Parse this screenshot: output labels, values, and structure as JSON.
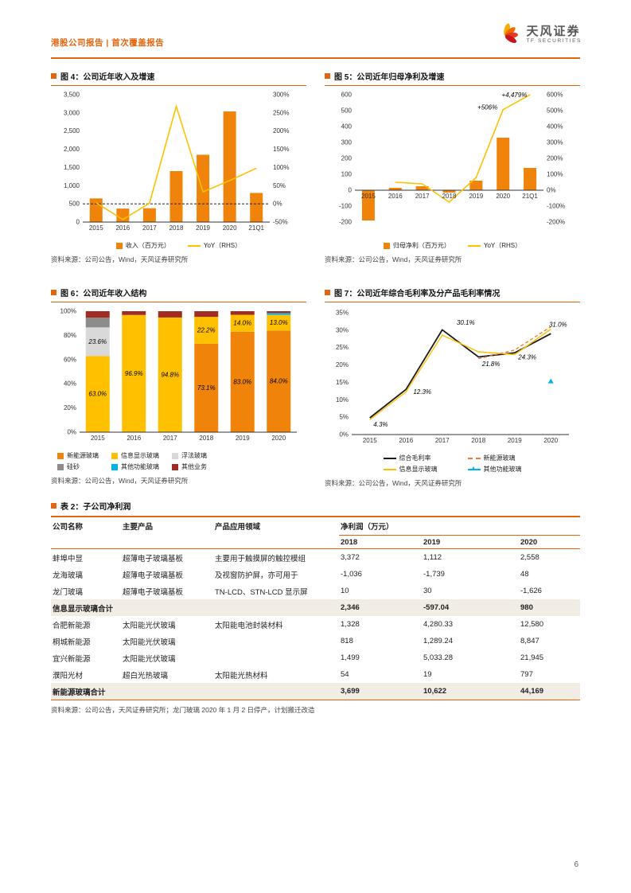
{
  "page": {
    "header_label": "港股公司报告 | 首次覆盖报告",
    "brand_cn": "天风证券",
    "brand_en": "TF SECURITIES",
    "page_number": "6",
    "accent_color": "#E4650F"
  },
  "figures": {
    "fig4": {
      "title": "图 4：公司近年收入及增速",
      "source": "资料来源：公司公告，Wind，天风证券研究所",
      "legend": [
        {
          "label": "收入（百万元）",
          "type": "rect",
          "color": "#F0830A"
        },
        {
          "label": "YoY（RHS）",
          "type": "line",
          "color": "#FFC000"
        }
      ]
    },
    "fig5": {
      "title": "图 5：公司近年归母净利及增速",
      "source": "资料来源：公司公告，Wind，天风证券研究所",
      "legend": [
        {
          "label": "归母净利（百万元）",
          "type": "rect",
          "color": "#F0830A"
        },
        {
          "label": "YoY（RHS）",
          "type": "line",
          "color": "#FFC000"
        }
      ]
    },
    "fig6": {
      "title": "图 6：公司近年收入结构",
      "source": "资料来源：公司公告，Wind，天风证券研究所",
      "legend": [
        {
          "label": "新能源玻璃",
          "type": "rect",
          "color": "#F0830A"
        },
        {
          "label": "信息显示玻璃",
          "type": "rect",
          "color": "#FFC000"
        },
        {
          "label": "浮法玻璃",
          "type": "rect",
          "color": "#D9D9D9"
        },
        {
          "label": "硅砂",
          "type": "rect",
          "color": "#8C8C8C"
        },
        {
          "label": "其他功能玻璃",
          "type": "rect",
          "color": "#00B0F0"
        },
        {
          "label": "其他业务",
          "type": "rect",
          "color": "#A12C24"
        }
      ]
    },
    "fig7": {
      "title": "图 7：公司近年综合毛利率及分产品毛利率情况",
      "source": "资料来源：公司公告，Wind，天风证券研究所",
      "legend": [
        {
          "label": "综合毛利率",
          "type": "line",
          "color": "#1A1A1A"
        },
        {
          "label": "新能源玻璃",
          "type": "dashed",
          "color": "#ED7D31"
        },
        {
          "label": "信息显示玻璃",
          "type": "line",
          "color": "#FFC000"
        },
        {
          "label": "其他功能玻璃",
          "type": "tri",
          "color": "#00B0F0"
        }
      ]
    }
  },
  "chart_data": [
    {
      "target": "chart4",
      "type": "bar+line",
      "title": "公司近年收入及增速",
      "categories": [
        "2015",
        "2016",
        "2017",
        "2018",
        "2019",
        "2020",
        "21Q1"
      ],
      "bars": {
        "name": "收入（百万元）",
        "color": "#F0830A",
        "values": [
          650,
          370,
          380,
          1400,
          1850,
          3040,
          800
        ]
      },
      "line": {
        "name": "YoY（RHS）",
        "color": "#FFC000",
        "values": [
          3,
          -43,
          2,
          268,
          33,
          64,
          98
        ]
      },
      "left_axis": {
        "min": 0,
        "max": 3500,
        "step": 500
      },
      "right_axis": {
        "min": -50,
        "max": 300,
        "step": 50
      },
      "dashed_zero": true,
      "x_labels_at_zero": false
    },
    {
      "target": "chart5",
      "type": "bar+line",
      "title": "公司近年归母净利及增速",
      "categories": [
        "2015",
        "2016",
        "2017",
        "2018",
        "2019",
        "2020",
        "21Q1"
      ],
      "bars": {
        "name": "归母净利（百万元）",
        "color": "#F0830A",
        "values": [
          -190,
          15,
          25,
          -15,
          60,
          330,
          140
        ]
      },
      "line": {
        "name": "YoY（RHS）",
        "color": "#FFC000",
        "values": [
          null,
          50,
          40,
          -75,
          80,
          506,
          4479
        ]
      },
      "left_axis": {
        "min": -200,
        "max": 600,
        "step": 100
      },
      "right_axis": {
        "min": -200,
        "max": 600,
        "step": 100
      },
      "dashed_zero": false,
      "x_labels_at_zero": true,
      "annotations": [
        {
          "x": 4.05,
          "y": 498,
          "dy": -2,
          "text": "+506%"
        },
        {
          "x": 4.95,
          "y": 585,
          "text": "+4,479%"
        }
      ]
    },
    {
      "target": "chart6",
      "type": "stacked-bar",
      "title": "公司近年收入结构",
      "categories": [
        "2015",
        "2016",
        "2017",
        "2018",
        "2019",
        "2020"
      ],
      "y_axis": {
        "min": 0,
        "max": 100,
        "step": 20
      },
      "series": [
        {
          "name": "新能源玻璃",
          "color": "#F0830A",
          "values": [
            0,
            0,
            0,
            73.1,
            83.0,
            84.0
          ]
        },
        {
          "name": "信息显示玻璃",
          "color": "#FFC000",
          "values": [
            63.0,
            96.9,
            94.8,
            22.2,
            14.0,
            13.0
          ]
        },
        {
          "name": "浮法玻璃",
          "color": "#D9D9D9",
          "values": [
            23.6,
            0,
            0,
            0,
            0,
            0
          ]
        },
        {
          "name": "硅砂",
          "color": "#8C8C8C",
          "values": [
            8.0,
            0,
            0,
            0,
            0,
            0
          ]
        },
        {
          "name": "其他功能玻璃",
          "color": "#00B0F0",
          "values": [
            0,
            0,
            0,
            0,
            0,
            1.5
          ]
        },
        {
          "name": "其他业务",
          "color": "#A12C24",
          "values": [
            5.4,
            3.1,
            5.2,
            4.7,
            3.0,
            1.5
          ]
        }
      ],
      "segment_labels": [
        {
          "c": 0,
          "s": 1,
          "text": "63.0%"
        },
        {
          "c": 0,
          "s": 2,
          "text": "23.6%"
        },
        {
          "c": 1,
          "s": 1,
          "text": "96.9%"
        },
        {
          "c": 2,
          "s": 1,
          "text": "94.8%"
        },
        {
          "c": 3,
          "s": 0,
          "text": "73.1%"
        },
        {
          "c": 3,
          "s": 1,
          "text": "22.2%"
        },
        {
          "c": 4,
          "s": 0,
          "text": "83.0%"
        },
        {
          "c": 4,
          "s": 1,
          "text": "14.0%"
        },
        {
          "c": 5,
          "s": 0,
          "text": "84.0%"
        },
        {
          "c": 5,
          "s": 1,
          "text": "13.0%"
        }
      ]
    },
    {
      "target": "chart7",
      "type": "line",
      "title": "公司近年综合毛利率及分产品毛利率情况",
      "categories": [
        "2015",
        "2016",
        "2017",
        "2018",
        "2019",
        "2020"
      ],
      "y_axis": {
        "min": 0,
        "max": 35,
        "step": 5
      },
      "series": [
        {
          "name": "综合毛利率",
          "color": "#1A1A1A",
          "width": 1.8,
          "values": [
            4.8,
            13.0,
            30.1,
            22.3,
            23.5,
            29.0
          ]
        },
        {
          "name": "信息显示玻璃",
          "color": "#FFC000",
          "width": 1.4,
          "values": [
            4.3,
            12.3,
            28.6,
            23.8,
            23.0,
            30.3
          ]
        },
        {
          "name": "新能源玻璃",
          "color": "#ED7D31",
          "width": 1.4,
          "dash": "4 3",
          "values": [
            null,
            null,
            null,
            21.8,
            24.3,
            31.0
          ]
        },
        {
          "name": "其他功能玻璃",
          "color": "#00B0F0",
          "marker": "triangle",
          "values": [
            null,
            null,
            null,
            null,
            null,
            15.3
          ]
        }
      ],
      "annotations": [
        {
          "x": 0.1,
          "y": 4.3,
          "dy": 9,
          "text": "4.3%"
        },
        {
          "x": 1.2,
          "y": 12.3,
          "dy": 3,
          "text": "12.3%"
        },
        {
          "x": 2.4,
          "y": 31.6,
          "text": "30.1%"
        },
        {
          "x": 3.1,
          "y": 20.6,
          "dy": 4,
          "text": "21.8%"
        },
        {
          "x": 4.1,
          "y": 22.8,
          "dy": 5,
          "text": "24.3%"
        },
        {
          "x": 4.95,
          "y": 31.0,
          "text": "31.0%"
        }
      ]
    }
  ],
  "table2": {
    "title": "表 2：子公司净利润",
    "source": "资料来源：公司公告，天风证券研究所；龙门玻璃 2020 年 1 月 2 日停产，计划搬迁改造",
    "header_row1": [
      "公司名称",
      "主要产品",
      "产品应用领域",
      "净利润（万元）"
    ],
    "header_row2": [
      "",
      "",
      "",
      "2018",
      "2019",
      "2020"
    ],
    "rows": [
      {
        "cells": [
          "蚌埠中显",
          "超薄电子玻璃基板",
          "主要用于触摸屏的触控模组",
          "3,372",
          "1,112",
          "2,558"
        ],
        "total": false
      },
      {
        "cells": [
          "龙海玻璃",
          "超薄电子玻璃基板",
          "及视窗防护屏，亦可用于",
          "-1,036",
          "-1,739",
          "48"
        ],
        "total": false
      },
      {
        "cells": [
          "龙门玻璃",
          "超薄电子玻璃基板",
          "TN-LCD、STN-LCD 显示屏",
          "10",
          "30",
          "-1,626"
        ],
        "total": false
      },
      {
        "cells": [
          "信息显示玻璃合计",
          "",
          "",
          "2,346",
          "-597.04",
          "980"
        ],
        "total": true
      },
      {
        "cells": [
          "合肥新能源",
          "太阳能光伏玻璃",
          "太阳能电池封装材料",
          "1,328",
          "4,280.33",
          "12,580"
        ],
        "total": false
      },
      {
        "cells": [
          "桐城新能源",
          "太阳能光伏玻璃",
          "",
          "818",
          "1,289.24",
          "8,847"
        ],
        "total": false
      },
      {
        "cells": [
          "宜兴新能源",
          "太阳能光伏玻璃",
          "",
          "1,499",
          "5,033.28",
          "21,945"
        ],
        "total": false
      },
      {
        "cells": [
          "濮阳光材",
          "超白光热玻璃",
          "太阳能光热材料",
          "54",
          "19",
          "797"
        ],
        "total": false
      },
      {
        "cells": [
          "新能源玻璃合计",
          "",
          "",
          "3,699",
          "10,622",
          "44,169"
        ],
        "total": true
      }
    ]
  }
}
